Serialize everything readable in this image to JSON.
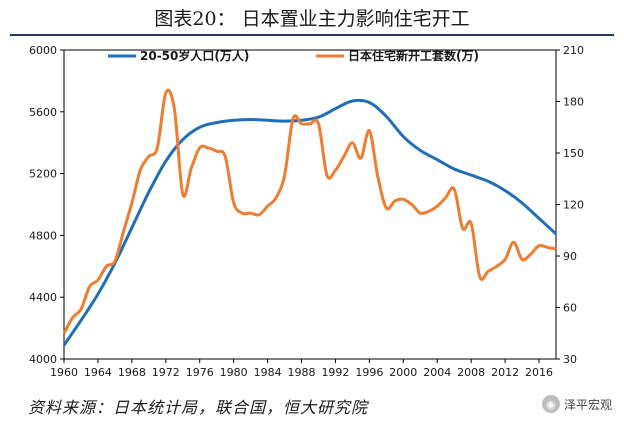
{
  "figure_title": "图表20：    日本置业主力影响住宅开工",
  "source_note": "资料来源：日本统计局，联合国，恒大研究院",
  "watermark": {
    "icon": "wechat-icon",
    "text": "泽平宏观"
  },
  "colors": {
    "population": "#1f6eb8",
    "housing": "#ee7d31",
    "title_rule": "#1f3864"
  },
  "chart_data": {
    "type": "line",
    "title": "图表20：    日本置业主力影响住宅开工",
    "xlim": [
      1960,
      2018
    ],
    "x_ticks": [
      1960,
      1964,
      1968,
      1972,
      1976,
      1980,
      1984,
      1988,
      1992,
      1996,
      2000,
      2004,
      2008,
      2012,
      2016
    ],
    "y_left": {
      "range": [
        4000,
        6000
      ],
      "ticks": [
        4000,
        4400,
        4800,
        5200,
        5600,
        6000
      ]
    },
    "y_right": {
      "range": [
        30,
        210
      ],
      "ticks": [
        30,
        60,
        90,
        120,
        150,
        180,
        210
      ]
    },
    "legend_position": "top",
    "series": [
      {
        "name": "20-50岁人口(万人)",
        "axis": "left",
        "x": [
          1960,
          1962,
          1964,
          1966,
          1968,
          1970,
          1972,
          1974,
          1976,
          1978,
          1980,
          1982,
          1984,
          1986,
          1988,
          1990,
          1992,
          1994,
          1996,
          1998,
          2000,
          2002,
          2004,
          2006,
          2008,
          2010,
          2012,
          2014,
          2016,
          2018
        ],
        "values": [
          4090,
          4250,
          4420,
          4620,
          4850,
          5080,
          5280,
          5420,
          5500,
          5530,
          5545,
          5550,
          5545,
          5540,
          5545,
          5565,
          5620,
          5670,
          5660,
          5570,
          5440,
          5350,
          5290,
          5230,
          5190,
          5150,
          5090,
          5010,
          4910,
          4810
        ]
      },
      {
        "name": "日本住宅新开工套数(万)",
        "axis": "right",
        "x": [
          1960,
          1961,
          1962,
          1963,
          1964,
          1965,
          1966,
          1967,
          1968,
          1969,
          1970,
          1971,
          1972,
          1973,
          1974,
          1975,
          1976,
          1977,
          1978,
          1979,
          1980,
          1981,
          1982,
          1983,
          1984,
          1985,
          1986,
          1987,
          1988,
          1989,
          1990,
          1991,
          1992,
          1993,
          1994,
          1995,
          1996,
          1997,
          1998,
          1999,
          2000,
          2001,
          2002,
          2003,
          2004,
          2005,
          2006,
          2007,
          2008,
          2009,
          2010,
          2011,
          2012,
          2013,
          2014,
          2015,
          2016,
          2017,
          2018
        ],
        "values": [
          45,
          54,
          59,
          72,
          76,
          84,
          87,
          104,
          121,
          140,
          148,
          153,
          185,
          176,
          126,
          141,
          153,
          153,
          151,
          148,
          121,
          115,
          115,
          114,
          119,
          124,
          137,
          170,
          167,
          167,
          167,
          137,
          140,
          148,
          156,
          147,
          163,
          136,
          118,
          122,
          123,
          120,
          115,
          116,
          119,
          124,
          129,
          106,
          109,
          78,
          81,
          84,
          88,
          98,
          88,
          91,
          96,
          95,
          94
        ]
      }
    ]
  }
}
